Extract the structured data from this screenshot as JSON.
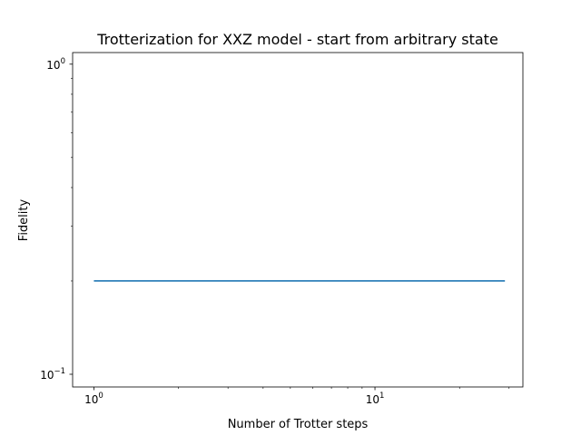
{
  "chart_data": {
    "type": "line",
    "title": "Trotterization for XXZ model - start from arbitrary state",
    "xlabel": "Number of Trotter steps",
    "ylabel": "Fidelity",
    "xscale": "log",
    "yscale": "log",
    "xlim": [
      0.84,
      33.6
    ],
    "ylim": [
      0.091,
      1.09
    ],
    "grid": false,
    "x_major_ticks": [
      {
        "value": 1,
        "label_base": "10",
        "label_exp": "0"
      },
      {
        "value": 10,
        "label_base": "10",
        "label_exp": "1"
      }
    ],
    "y_major_ticks": [
      {
        "value": 0.1,
        "label_base": "10",
        "label_exp": "−1"
      },
      {
        "value": 1,
        "label_base": "10",
        "label_exp": "0"
      }
    ],
    "x_minor_ticks": [
      2,
      3,
      4,
      5,
      6,
      7,
      8,
      9,
      20,
      30
    ],
    "y_minor_ticks": [
      0.2,
      0.3,
      0.4,
      0.5,
      0.6,
      0.7,
      0.8,
      0.9
    ],
    "series": [
      {
        "color": "#1f77b4",
        "x": [
          1,
          29
        ],
        "y": [
          0.2,
          0.2
        ]
      }
    ]
  }
}
